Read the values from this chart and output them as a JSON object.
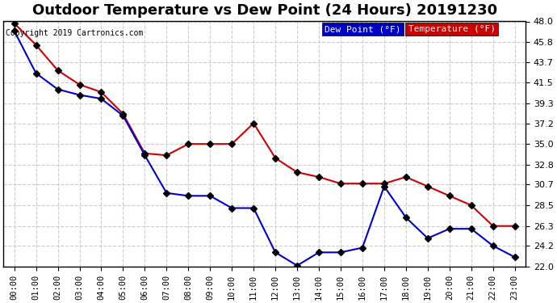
{
  "title": "Outdoor Temperature vs Dew Point (24 Hours) 20191230",
  "copyright": "Copyright 2019 Cartronics.com",
  "x_labels": [
    "00:00",
    "01:00",
    "02:00",
    "03:00",
    "04:00",
    "05:00",
    "06:00",
    "07:00",
    "08:00",
    "09:00",
    "10:00",
    "11:00",
    "12:00",
    "13:00",
    "14:00",
    "15:00",
    "16:00",
    "17:00",
    "18:00",
    "19:00",
    "20:00",
    "21:00",
    "22:00",
    "23:00"
  ],
  "temperature": [
    47.8,
    45.5,
    42.8,
    41.3,
    40.5,
    38.2,
    34.0,
    33.8,
    35.0,
    35.0,
    35.0,
    37.2,
    33.5,
    32.0,
    31.5,
    30.8,
    30.8,
    30.8,
    31.5,
    30.5,
    29.5,
    28.5,
    26.3,
    26.3
  ],
  "dew_point": [
    47.0,
    42.5,
    40.8,
    40.2,
    39.8,
    38.0,
    33.8,
    29.8,
    29.5,
    29.5,
    28.2,
    28.2,
    23.5,
    22.1,
    23.5,
    23.5,
    24.0,
    30.5,
    27.2,
    25.0,
    26.0,
    26.0,
    24.2,
    23.0
  ],
  "temp_color": "#cc0000",
  "dew_color": "#0000cc",
  "ylim_min": 22.0,
  "ylim_max": 48.0,
  "yticks": [
    22.0,
    24.2,
    26.3,
    28.5,
    30.7,
    32.8,
    35.0,
    37.2,
    39.3,
    41.5,
    43.7,
    45.8,
    48.0
  ],
  "background_color": "#ffffff",
  "grid_color": "#cccccc",
  "legend_dew_bg": "#0000cc",
  "legend_temp_bg": "#cc0000",
  "legend_text_color": "#ffffff",
  "title_fontsize": 13,
  "marker_size": 4,
  "line_width": 1.5
}
